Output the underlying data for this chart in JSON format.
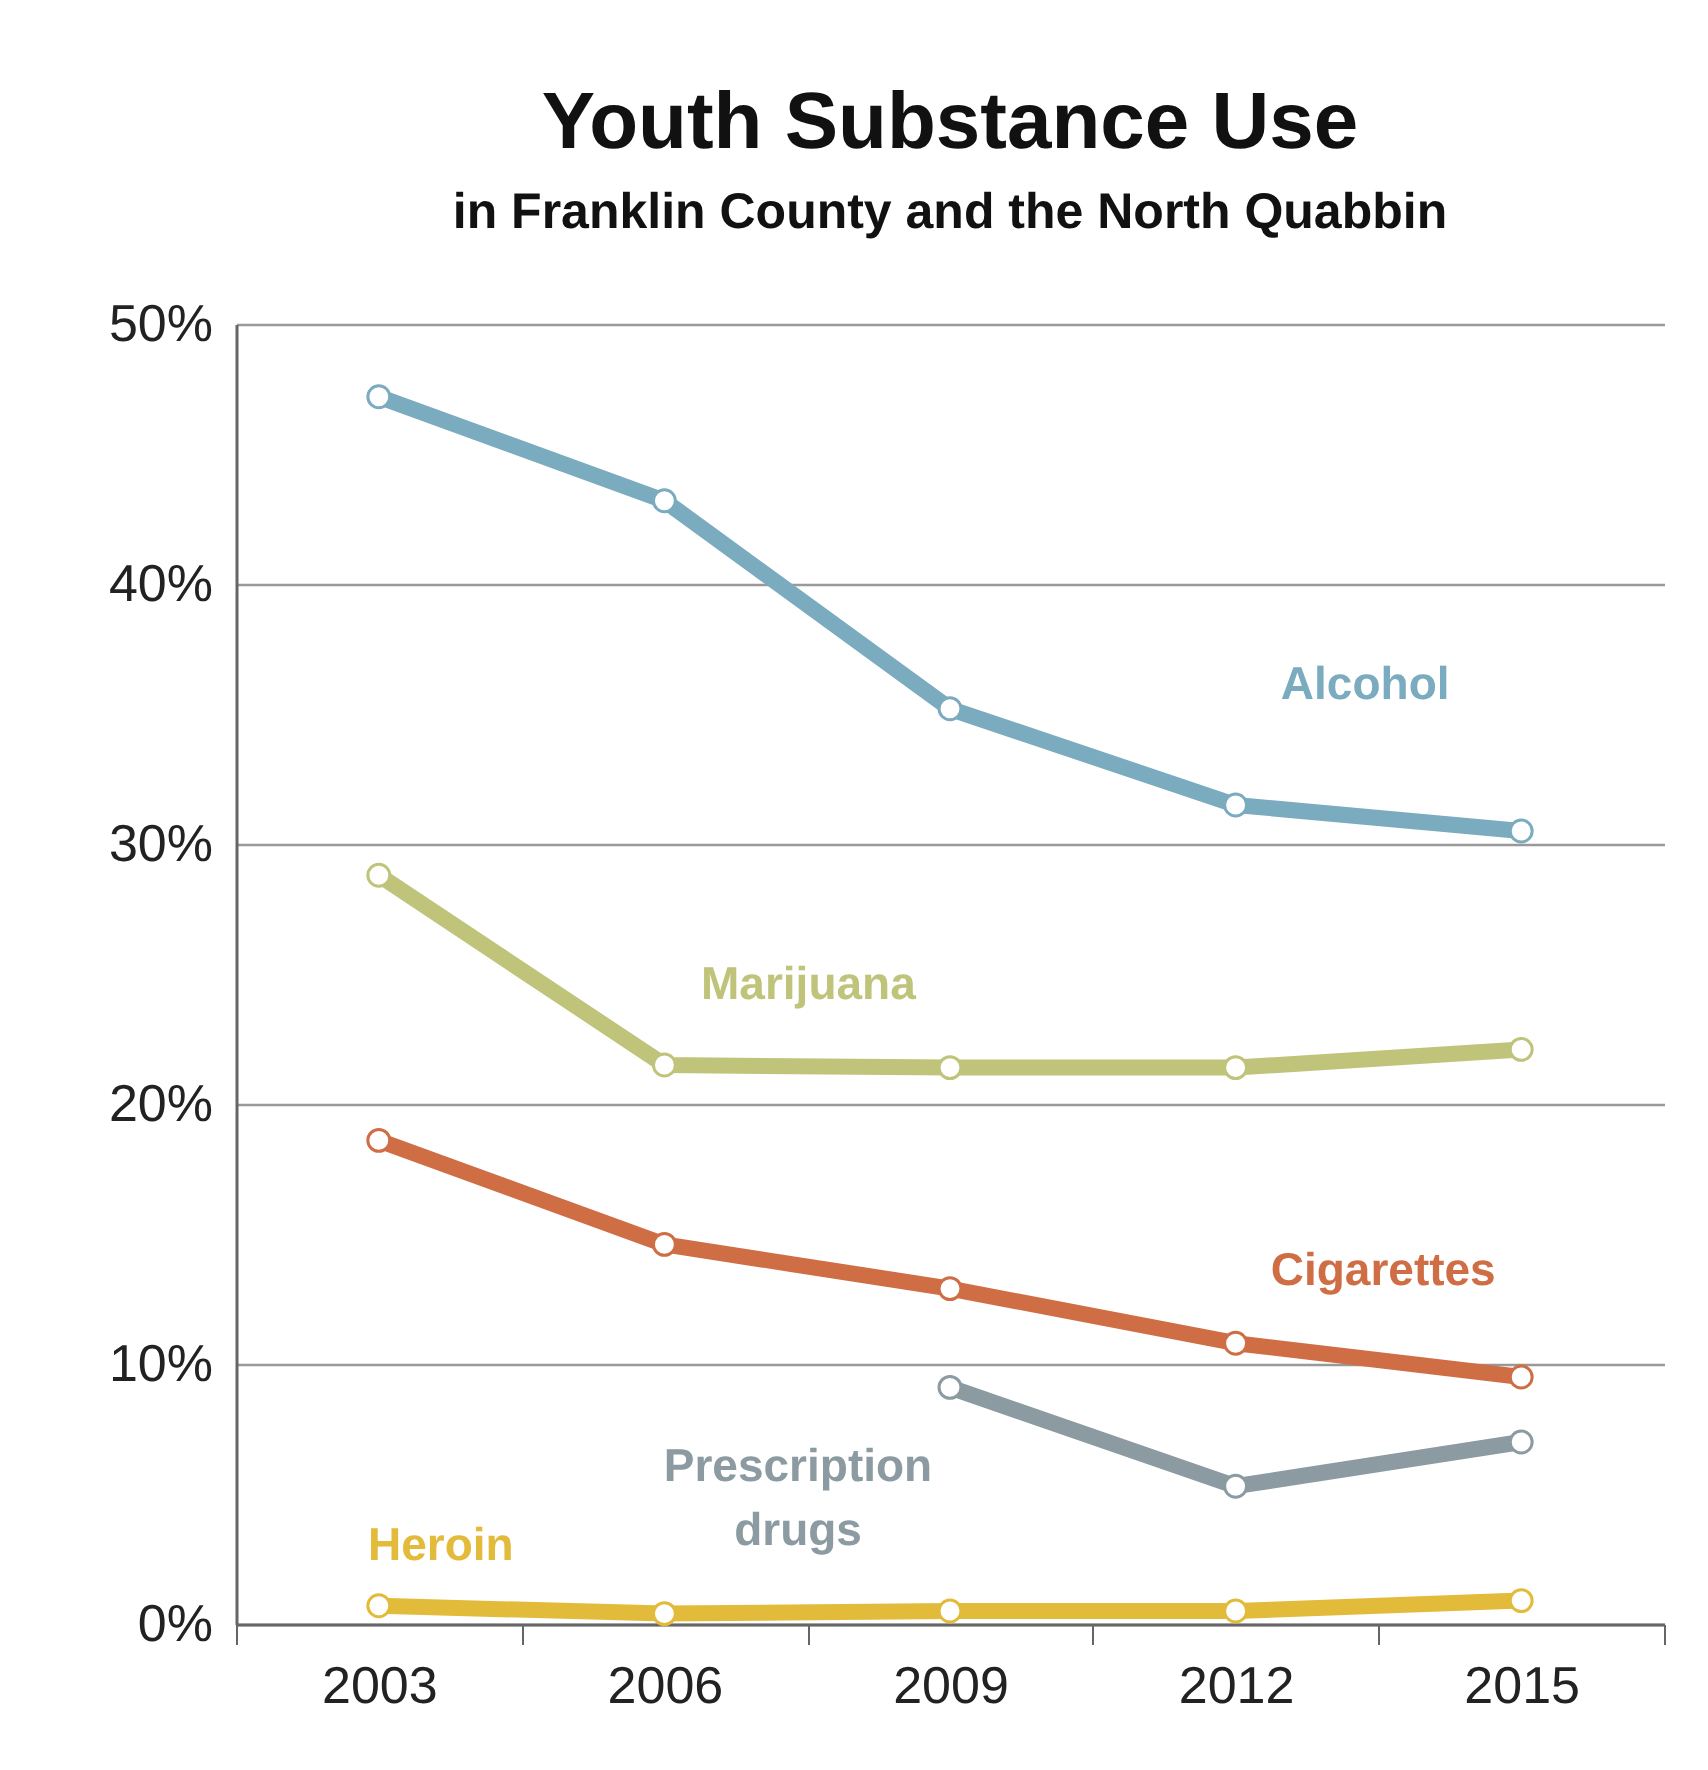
{
  "chart_data": {
    "type": "line",
    "title": "Youth Substance Use",
    "subtitle": "in Franklin County and the North Quabbin",
    "categories": [
      "2003",
      "2006",
      "2009",
      "2012",
      "2015"
    ],
    "series": [
      {
        "name": "Alcohol",
        "color": "#7aabbf",
        "values": [
          47.2,
          43.2,
          35.2,
          31.5,
          30.5
        ]
      },
      {
        "name": "Marijuana",
        "color": "#bfc47a",
        "values": [
          28.8,
          21.5,
          21.4,
          21.4,
          22.1
        ]
      },
      {
        "name": "Cigarettes",
        "color": "#cf6e45",
        "values": [
          18.6,
          14.6,
          12.9,
          10.8,
          9.5
        ]
      },
      {
        "name": "Prescription drugs",
        "color": "#8c9aa1",
        "values": [
          null,
          null,
          9.1,
          5.3,
          7.0
        ]
      },
      {
        "name": "Heroin",
        "color": "#e3bb3b",
        "values": [
          0.7,
          0.4,
          0.5,
          0.5,
          0.9
        ]
      }
    ],
    "ylim": [
      0,
      50
    ],
    "yticks": [
      {
        "value": 0,
        "label": "0%"
      },
      {
        "value": 10,
        "label": "10%"
      },
      {
        "value": 20,
        "label": "20%"
      },
      {
        "value": 30,
        "label": "30%"
      },
      {
        "value": 40,
        "label": "40%"
      },
      {
        "value": 50,
        "label": "50%"
      }
    ],
    "grid": "y",
    "legend": false,
    "marker": "circle",
    "line_style": "solid"
  }
}
